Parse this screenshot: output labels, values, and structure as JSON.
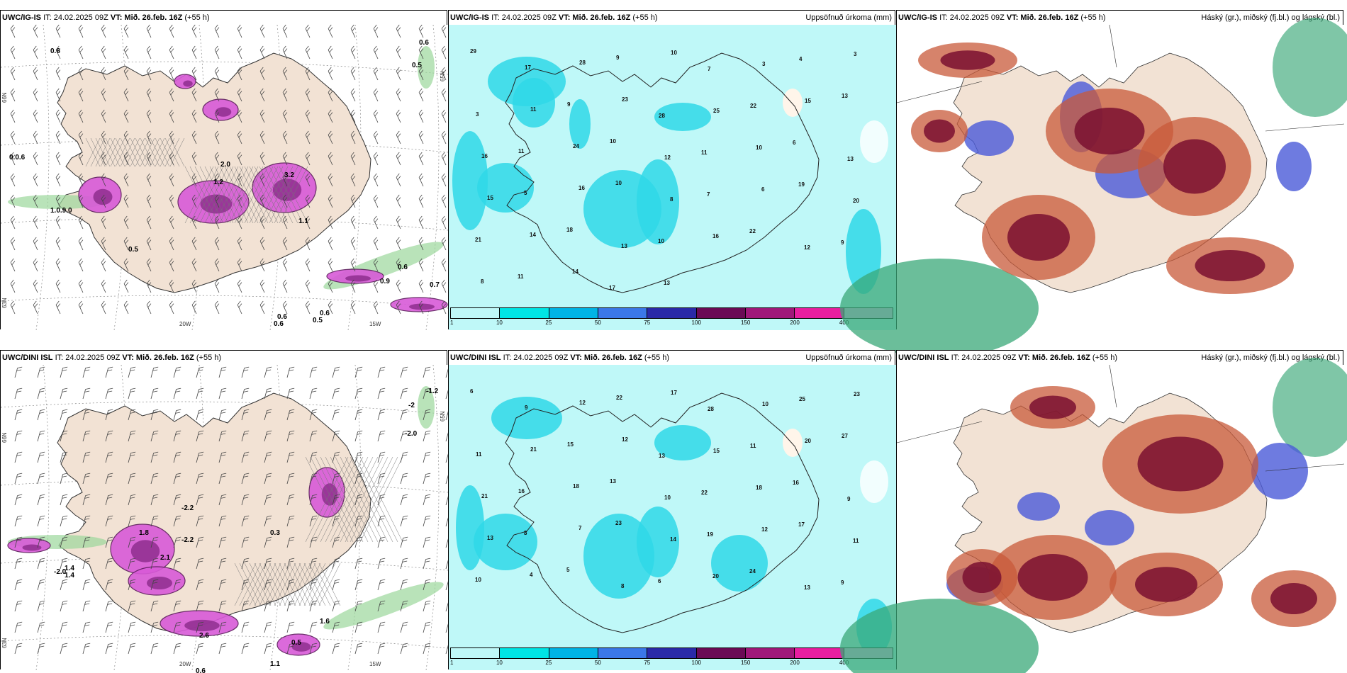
{
  "panels": [
    {
      "model": "UWC/IG-IS",
      "it": "IT: 24.02.2025 09Z",
      "vt": "VT: Mið. 26.feb. 16Z",
      "lead": "(+55 h)",
      "title": ""
    },
    {
      "model": "UWC/IG-IS",
      "it": "IT: 24.02.2025 09Z",
      "vt": "VT: Mið. 26.feb. 16Z",
      "lead": "(+55 h)",
      "title": "Uppsöfnuð úrkoma (mm)"
    },
    {
      "model": "UWC/IG-IS",
      "it": "IT: 24.02.2025 09Z",
      "vt": "VT: Mið. 26.feb. 16Z",
      "lead": "(+55 h)",
      "title": "Háský (gr.), miðský (fj.bl.) og lágský (bl.)"
    },
    {
      "model": "UWC/DINI ISL",
      "it": "IT: 24.02.2025 09Z",
      "vt": "VT: Mið. 26.feb. 16Z",
      "lead": "(+55 h)",
      "title": ""
    },
    {
      "model": "UWC/DINI ISL",
      "it": "IT: 24.02.2025 09Z",
      "vt": "VT: Mið. 26.feb. 16Z",
      "lead": "(+55 h)",
      "title": "Uppsöfnuð úrkoma (mm)"
    },
    {
      "model": "UWC/DINI ISL",
      "it": "IT: 24.02.2025 09Z",
      "vt": "VT: Mið. 26.feb. 16Z",
      "lead": "(+55 h)",
      "title": "Háský (gr.), miðský (fj.bl.) og lágský (bl.)"
    }
  ],
  "colorbar": {
    "ticks": [
      "1",
      "10",
      "25",
      "50",
      "75",
      "100",
      "150",
      "200",
      "400"
    ],
    "colors": [
      "#bff8f8",
      "#00e5e5",
      "#00b4e6",
      "#3b78e8",
      "#2a2aa8",
      "#6b0a55",
      "#a0187a",
      "#e81ea0",
      "#f0b4f0"
    ]
  },
  "axis_labels": {
    "top": {
      "lon_20": "20W",
      "lon_15": "15W",
      "lat_a": "66N",
      "lat_b": "65N",
      "lat_c": "63N"
    },
    "bottom": {
      "lon_20": "20W",
      "lon_15": "15W",
      "lat_a": "66N",
      "lat_b": "65N",
      "lat_c": "63N"
    }
  },
  "labels": {
    "top_left": [
      "0.6",
      "0.6",
      "0.5",
      "0.0.6",
      "1.0.9.0",
      "0.6",
      "0.9",
      "0.7",
      "0.6",
      "0.5",
      "0.6",
      "0.6",
      "1.2",
      "2.0",
      "1.1",
      "3.2",
      "0.5"
    ],
    "bottom_left": [
      "-1.2",
      "-2",
      "-2.0",
      "-2.2",
      "1.4",
      "-2.0",
      "0.5",
      "0.6",
      "1.1",
      "1.6",
      "1.4",
      "2.6",
      "0.3",
      "-2.2",
      "1.8",
      "2.1"
    ],
    "top_mid": [
      "29",
      "17",
      "28",
      "9",
      "10",
      "7",
      "3",
      "4",
      "3",
      "3",
      "11",
      "9",
      "23",
      "28",
      "25",
      "22",
      "15",
      "13",
      "16",
      "11",
      "24",
      "10",
      "12",
      "11",
      "10",
      "6",
      "13",
      "15",
      "5",
      "16",
      "10",
      "8",
      "7",
      "6",
      "19",
      "20",
      "21",
      "14",
      "18",
      "13",
      "10",
      "16",
      "22",
      "12",
      "9",
      "8",
      "11",
      "14",
      "17",
      "13"
    ],
    "bottom_mid": [
      "6",
      "9",
      "12",
      "22",
      "17",
      "28",
      "10",
      "25",
      "23",
      "11",
      "21",
      "15",
      "12",
      "13",
      "15",
      "11",
      "20",
      "27",
      "21",
      "16",
      "18",
      "13",
      "10",
      "22",
      "18",
      "16",
      "9",
      "13",
      "8",
      "7",
      "23",
      "14",
      "19",
      "12",
      "17",
      "11",
      "10",
      "4",
      "5",
      "8",
      "6",
      "20",
      "24",
      "13",
      "9"
    ]
  }
}
